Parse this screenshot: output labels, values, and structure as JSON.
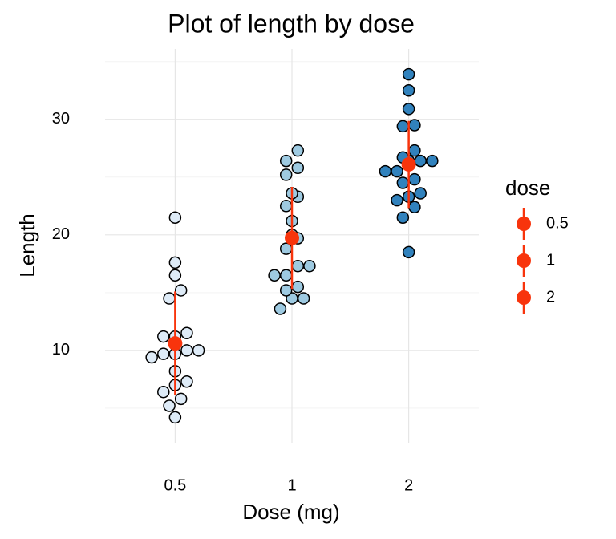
{
  "chart_data": {
    "type": "dotplot",
    "title": "Plot of length  by dose",
    "x_label": "Dose (mg)",
    "y_label": "Length",
    "categories": [
      "0.5",
      "1",
      "2"
    ],
    "groups": [
      {
        "name": "0.5",
        "color": "#deebf7",
        "values": [
          4.2,
          11.5,
          7.3,
          5.8,
          6.4,
          10,
          11.2,
          11.2,
          5.2,
          7,
          15.2,
          21.5,
          17.6,
          9.7,
          14.5,
          10,
          8.2,
          9.4,
          16.5,
          9.7
        ]
      },
      {
        "name": "1",
        "color": "#9ecae1",
        "values": [
          16.5,
          16.5,
          15.2,
          17.3,
          22.5,
          17.3,
          13.6,
          14.5,
          18.8,
          15.5,
          19.7,
          23.3,
          23.6,
          26.4,
          20,
          25.2,
          25.8,
          21.2,
          14.5,
          27.3
        ]
      },
      {
        "name": "2",
        "color": "#3182bd",
        "values": [
          23.6,
          18.5,
          33.9,
          25.5,
          26.4,
          32.5,
          26.7,
          21.5,
          23.3,
          29.5,
          25.5,
          26.4,
          22.4,
          24.5,
          24.8,
          30.9,
          26.4,
          27.3,
          29.4,
          23
        ]
      }
    ],
    "mean": [
      10.605,
      19.735,
      26.1
    ],
    "sd": [
      4.5,
      4.415,
      3.774
    ],
    "summary_color": "#f8340c",
    "legend_title": "dose",
    "legend_position": "right",
    "ylim": [
      2.7,
      35.4
    ],
    "yticks": [
      10,
      20,
      30
    ],
    "minor_yticks": [
      5,
      15,
      25,
      35
    ],
    "grid": true
  }
}
